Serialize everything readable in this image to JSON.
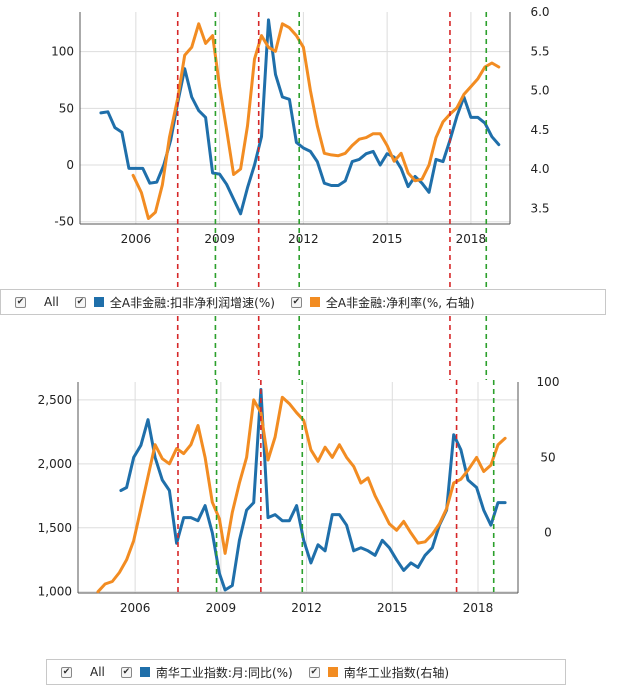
{
  "colors": {
    "blue": "#1f6faa",
    "orange": "#f28c22",
    "red": "#d62728",
    "green": "#2ca02c",
    "grid": "#dddddd",
    "axis": "#555555"
  },
  "icons": {
    "checkbox": "check-icon"
  },
  "chart_data": [
    {
      "type": "line",
      "title": "",
      "x_ticks": [
        "2006",
        "2009",
        "2012",
        "2015",
        "2018"
      ],
      "y_left_ticks": [
        "-50",
        "0",
        "50",
        "100"
      ],
      "y_right_ticks": [
        "3.5",
        "4.0",
        "4.5",
        "5.0",
        "5.5",
        "6.0"
      ],
      "ylim_left": [
        -52,
        135
      ],
      "ylim_right": [
        3.3,
        6.0
      ],
      "xlim": [
        2004.0,
        2019.4
      ],
      "legend": {
        "all_label": "All",
        "placement": "bottom"
      },
      "series": [
        {
          "name": "全A非金融:扣非净利润增速(%)",
          "axis": "left",
          "color": "#1f6faa",
          "x": [
            2004.75,
            2005.0,
            2005.25,
            2005.5,
            2005.75,
            2006.0,
            2006.25,
            2006.5,
            2006.75,
            2007.0,
            2007.25,
            2007.5,
            2007.75,
            2008.0,
            2008.25,
            2008.5,
            2008.75,
            2009.0,
            2009.25,
            2009.5,
            2009.75,
            2010.0,
            2010.25,
            2010.5,
            2010.75,
            2011.0,
            2011.25,
            2011.5,
            2011.75,
            2012.0,
            2012.25,
            2012.5,
            2012.75,
            2013.0,
            2013.25,
            2013.5,
            2013.75,
            2014.0,
            2014.25,
            2014.5,
            2014.75,
            2015.0,
            2015.25,
            2015.5,
            2015.75,
            2016.0,
            2016.25,
            2016.5,
            2016.75,
            2017.0,
            2017.25,
            2017.5,
            2017.75,
            2018.0,
            2018.25,
            2018.5,
            2018.75
          ],
          "y": [
            46,
            47,
            33,
            29,
            -3,
            -3,
            -3,
            -16,
            -15,
            0,
            22,
            55,
            85,
            60,
            48,
            42,
            -7,
            -8,
            -17,
            -30,
            -43,
            -20,
            0,
            25,
            128,
            80,
            60,
            58,
            20,
            15,
            12,
            3,
            -16,
            -18,
            -18,
            -14,
            3,
            5,
            10,
            12,
            0,
            10,
            7,
            -3,
            -19,
            -10,
            -16,
            -24,
            5,
            3,
            22,
            43,
            60,
            42,
            42,
            37,
            25
          ],
          "last_point": [
            2019.0,
            18
          ]
        },
        {
          "name": "全A非金融:净利率(%, 右轴)",
          "axis": "right",
          "color": "#f28c22",
          "x": [
            2005.9,
            2006.2,
            2006.45,
            2006.7,
            2006.95,
            2007.2,
            2007.5,
            2007.75,
            2008.0,
            2008.25,
            2008.5,
            2008.75,
            2009.0,
            2009.25,
            2009.5,
            2009.75,
            2010.0,
            2010.25,
            2010.5,
            2010.75,
            2011.0,
            2011.25,
            2011.5,
            2011.75,
            2012.0,
            2012.25,
            2012.5,
            2012.75,
            2013.0,
            2013.25,
            2013.5,
            2013.75,
            2014.0,
            2014.25,
            2014.5,
            2014.75,
            2015.0,
            2015.25,
            2015.5,
            2015.75,
            2016.0,
            2016.25,
            2016.5,
            2016.75,
            2017.0,
            2017.25,
            2017.5,
            2017.75,
            2018.0,
            2018.25,
            2018.5,
            2018.75,
            2019.0
          ],
          "y": [
            3.92,
            3.7,
            3.37,
            3.45,
            3.8,
            4.4,
            4.9,
            5.45,
            5.55,
            5.85,
            5.6,
            5.7,
            5.05,
            4.5,
            3.93,
            4.0,
            4.55,
            5.4,
            5.7,
            5.55,
            5.5,
            5.85,
            5.8,
            5.7,
            5.55,
            5.0,
            4.55,
            4.2,
            4.18,
            4.17,
            4.2,
            4.3,
            4.38,
            4.4,
            4.45,
            4.45,
            4.3,
            4.1,
            4.2,
            3.95,
            3.85,
            3.87,
            4.05,
            4.4,
            4.6,
            4.7,
            4.78,
            4.95,
            5.05,
            5.15,
            5.3,
            5.35,
            5.3
          ]
        }
      ],
      "vlines": [
        {
          "x": 2007.5,
          "color": "red"
        },
        {
          "x": 2008.85,
          "color": "green"
        },
        {
          "x": 2010.4,
          "color": "red"
        },
        {
          "x": 2011.85,
          "color": "green"
        },
        {
          "x": 2017.25,
          "color": "red"
        },
        {
          "x": 2018.55,
          "color": "green"
        }
      ]
    },
    {
      "type": "line",
      "title": "",
      "x_ticks": [
        "2006",
        "2009",
        "2012",
        "2015",
        "2018"
      ],
      "y_left_ticks": [
        "1,000",
        "1,500",
        "2,000",
        "2,500"
      ],
      "y_right_ticks": [
        "0",
        "50",
        "100"
      ],
      "ylim_left": [
        990,
        2640
      ],
      "ylim_right": [
        -40,
        100
      ],
      "xlim": [
        2004.0,
        2019.4
      ],
      "legend": {
        "all_label": "All",
        "placement": "bottom"
      },
      "series": [
        {
          "name": "南华工业指数:月:同比(%)",
          "axis": "right",
          "color": "#1f6faa",
          "x": [
            2005.5,
            2005.7,
            2005.95,
            2006.2,
            2006.45,
            2006.7,
            2006.95,
            2007.2,
            2007.45,
            2007.7,
            2007.95,
            2008.2,
            2008.45,
            2008.7,
            2008.95,
            2009.15,
            2009.4,
            2009.65,
            2009.9,
            2010.15,
            2010.4,
            2010.65,
            2010.9,
            2011.15,
            2011.4,
            2011.65,
            2011.9,
            2012.15,
            2012.4,
            2012.65,
            2012.9,
            2013.15,
            2013.4,
            2013.65,
            2013.9,
            2014.15,
            2014.4,
            2014.65,
            2014.9,
            2015.15,
            2015.4,
            2015.65,
            2015.9,
            2016.15,
            2016.4,
            2016.65,
            2016.9,
            2017.15,
            2017.4,
            2017.65,
            2017.95,
            2018.2,
            2018.45,
            2018.7,
            2018.95
          ],
          "y": [
            28,
            30,
            50,
            58,
            75,
            50,
            35,
            28,
            -7,
            10,
            10,
            8,
            18,
            0,
            -27,
            -38,
            -35,
            -5,
            15,
            20,
            95,
            10,
            12,
            8,
            8,
            18,
            -5,
            -20,
            -8,
            -12,
            12,
            12,
            5,
            -12,
            -10,
            -12,
            -15,
            -5,
            -10,
            -18,
            -25,
            -20,
            -23,
            -15,
            -10,
            5,
            15,
            65,
            55,
            35,
            30,
            15,
            5,
            20,
            20
          ]
        },
        {
          "name": "南华工业指数(右轴)",
          "axis": "left",
          "color": "#f28c22",
          "x": [
            2004.7,
            2004.95,
            2005.2,
            2005.45,
            2005.7,
            2005.95,
            2006.2,
            2006.45,
            2006.7,
            2006.95,
            2007.2,
            2007.45,
            2007.7,
            2007.95,
            2008.2,
            2008.45,
            2008.7,
            2008.95,
            2009.15,
            2009.4,
            2009.65,
            2009.9,
            2010.15,
            2010.4,
            2010.65,
            2010.9,
            2011.15,
            2011.4,
            2011.65,
            2011.9,
            2012.15,
            2012.4,
            2012.65,
            2012.9,
            2013.15,
            2013.4,
            2013.65,
            2013.9,
            2014.15,
            2014.4,
            2014.65,
            2014.9,
            2015.15,
            2015.4,
            2015.65,
            2015.9,
            2016.15,
            2016.4,
            2016.65,
            2016.9,
            2017.15,
            2017.4,
            2017.65,
            2017.95,
            2018.2,
            2018.45,
            2018.7,
            2018.95
          ],
          "y": [
            1000,
            1060,
            1080,
            1150,
            1250,
            1400,
            1650,
            1900,
            2150,
            2040,
            2000,
            2120,
            2080,
            2150,
            2300,
            2050,
            1700,
            1570,
            1300,
            1620,
            1850,
            2050,
            2500,
            2400,
            2030,
            2210,
            2520,
            2470,
            2400,
            2340,
            2110,
            2020,
            2130,
            2050,
            2150,
            2050,
            1980,
            1850,
            1890,
            1750,
            1640,
            1530,
            1480,
            1550,
            1460,
            1380,
            1390,
            1450,
            1530,
            1650,
            1850,
            1880,
            1950,
            2050,
            1940,
            1990,
            2150,
            2200
          ]
        }
      ],
      "vlines": [
        {
          "x": 2007.5,
          "color": "red"
        },
        {
          "x": 2008.85,
          "color": "green"
        },
        {
          "x": 2010.4,
          "color": "red"
        },
        {
          "x": 2011.85,
          "color": "green"
        },
        {
          "x": 2017.25,
          "color": "red"
        },
        {
          "x": 2018.55,
          "color": "green"
        }
      ]
    }
  ]
}
